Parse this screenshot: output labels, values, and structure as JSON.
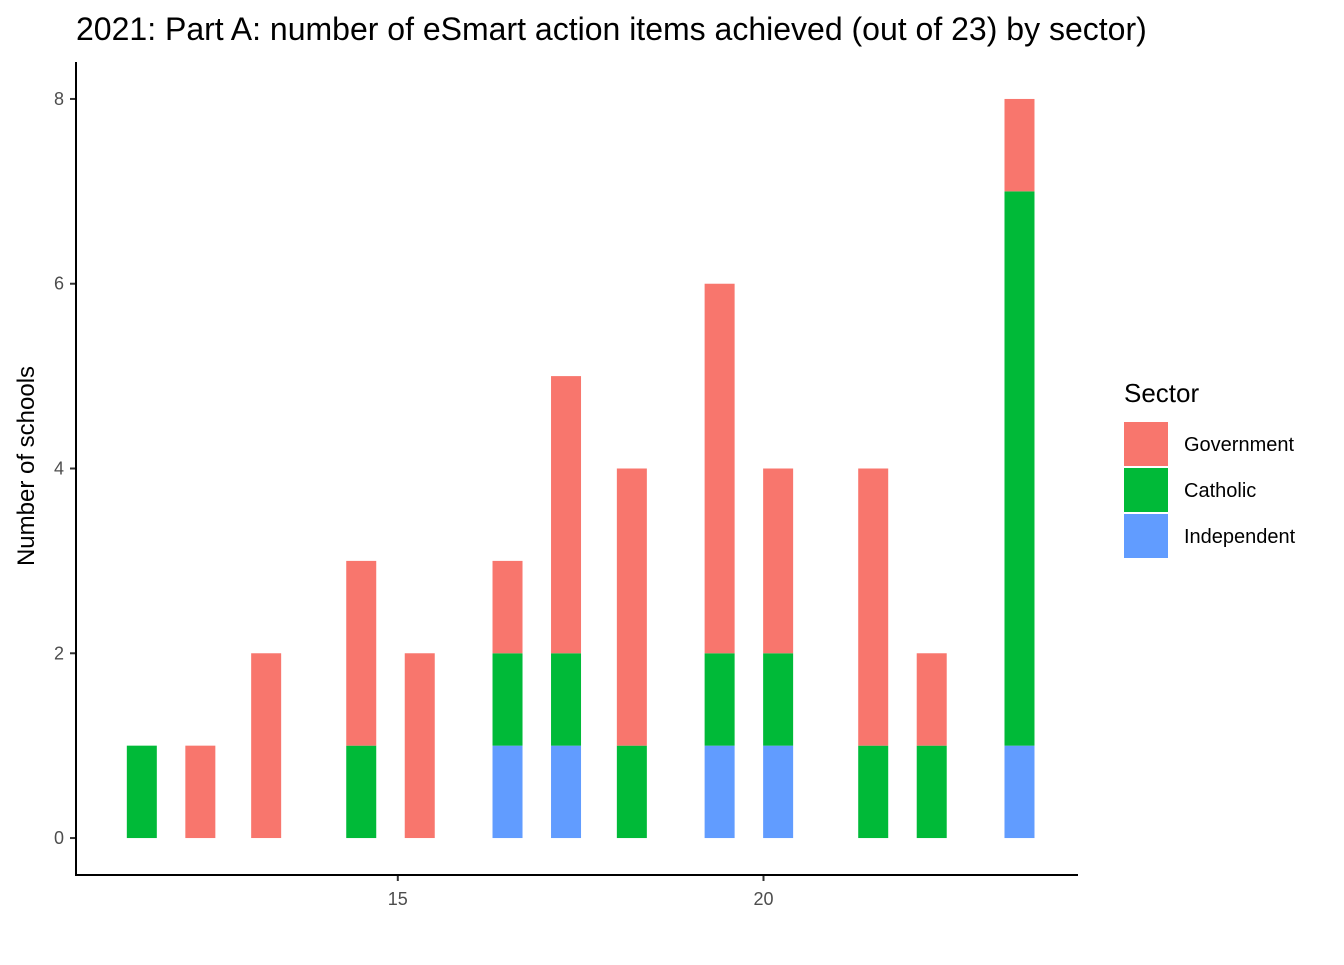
{
  "chart_data": {
    "type": "bar",
    "stacked": true,
    "title": "2021: Part A: number of eSmart action items achieved (out of 23) by sector)",
    "xlabel": "",
    "ylabel": "Number of schools",
    "xlim": [
      10.6,
      24.3
    ],
    "ylim": [
      -0.4,
      8.4
    ],
    "x_ticks": [
      15,
      20
    ],
    "y_ticks": [
      0,
      2,
      4,
      6,
      8
    ],
    "grid": false,
    "legend": {
      "title": "Sector",
      "position": "right"
    },
    "x": [
      11.5,
      12.3,
      13.2,
      14.5,
      15.3,
      16.5,
      17.3,
      18.2,
      19.4,
      20.2,
      21.5,
      22.3,
      23.5
    ],
    "series": [
      {
        "name": "Government",
        "color": "#F8766D",
        "values": [
          0,
          1,
          2,
          2,
          2,
          1,
          3,
          3,
          4,
          2,
          3,
          1,
          1
        ]
      },
      {
        "name": "Catholic",
        "color": "#00BA38",
        "values": [
          1,
          0,
          0,
          1,
          0,
          1,
          1,
          1,
          1,
          1,
          1,
          1,
          6
        ]
      },
      {
        "name": "Independent",
        "color": "#619CFF",
        "values": [
          0,
          0,
          0,
          0,
          0,
          1,
          1,
          0,
          1,
          1,
          0,
          0,
          1
        ]
      }
    ],
    "stack_order_bottom_to_top": [
      "Independent",
      "Catholic",
      "Government"
    ]
  }
}
